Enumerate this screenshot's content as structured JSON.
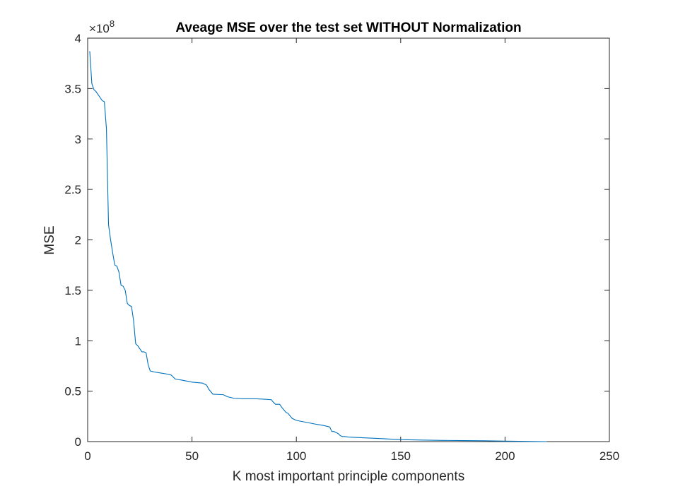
{
  "chart_data": {
    "type": "line",
    "title": "Aveage MSE over the test set WITHOUT Normalization",
    "xlabel": "K most important principle components",
    "ylabel": "MSE",
    "xlim": [
      0,
      250
    ],
    "ylim": [
      0,
      4
    ],
    "y_exponent_label": "×10",
    "y_exponent": "8",
    "x_ticks": [
      0,
      50,
      100,
      150,
      200,
      250
    ],
    "x_tick_labels": [
      "0",
      "50",
      "100",
      "150",
      "200",
      "250"
    ],
    "y_ticks": [
      0,
      0.5,
      1,
      1.5,
      2,
      2.5,
      3,
      3.5,
      4
    ],
    "y_tick_labels": [
      "0",
      "0.5",
      "1",
      "1.5",
      "2",
      "2.5",
      "3",
      "3.5",
      "4"
    ],
    "grid": false,
    "line_color": "#0072bd",
    "series": [
      {
        "x": [
          1,
          2,
          3,
          4,
          5,
          6,
          7,
          8,
          9,
          10,
          11,
          12,
          13,
          14,
          15,
          16,
          17,
          18,
          19,
          20,
          21,
          22,
          23,
          24,
          25,
          26,
          27,
          28,
          29,
          30,
          32,
          35,
          38,
          40,
          42,
          45,
          50,
          55,
          57,
          58,
          60,
          65,
          67,
          70,
          75,
          80,
          85,
          88,
          89,
          90,
          92,
          93,
          95,
          96,
          98,
          100,
          105,
          110,
          113,
          115,
          116,
          117,
          118,
          119,
          120,
          121,
          122,
          123,
          125,
          130,
          140,
          150,
          160,
          170,
          180,
          190,
          200,
          210,
          220
        ],
        "y": [
          3.87,
          3.55,
          3.49,
          3.47,
          3.44,
          3.41,
          3.38,
          3.37,
          3.1,
          2.15,
          2.0,
          1.87,
          1.75,
          1.74,
          1.68,
          1.55,
          1.54,
          1.5,
          1.37,
          1.35,
          1.34,
          1.2,
          0.97,
          0.95,
          0.92,
          0.89,
          0.89,
          0.88,
          0.76,
          0.7,
          0.69,
          0.68,
          0.67,
          0.66,
          0.62,
          0.61,
          0.59,
          0.58,
          0.56,
          0.52,
          0.47,
          0.465,
          0.445,
          0.43,
          0.425,
          0.425,
          0.42,
          0.415,
          0.39,
          0.37,
          0.37,
          0.34,
          0.29,
          0.28,
          0.23,
          0.21,
          0.19,
          0.17,
          0.16,
          0.15,
          0.145,
          0.1,
          0.1,
          0.09,
          0.08,
          0.06,
          0.05,
          0.05,
          0.045,
          0.04,
          0.03,
          0.02,
          0.015,
          0.012,
          0.01,
          0.008,
          0.005,
          0.002,
          0.0
        ]
      }
    ]
  }
}
